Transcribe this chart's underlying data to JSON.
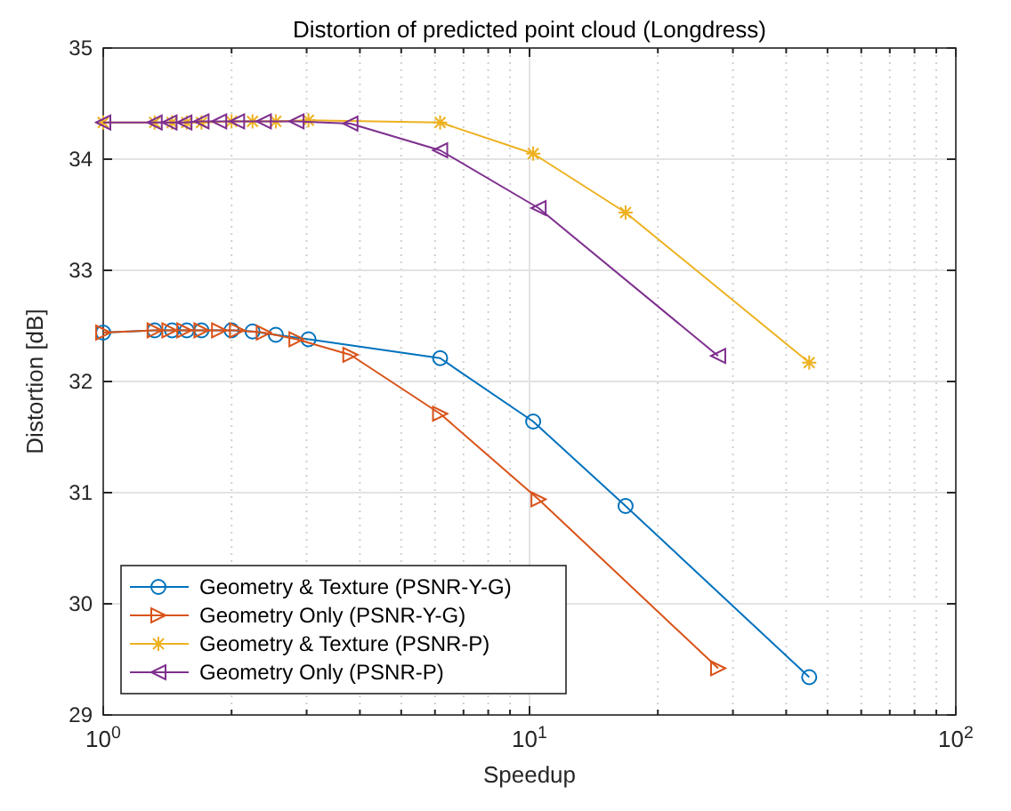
{
  "chart_data": {
    "type": "line",
    "title": "Distortion of predicted point cloud (Longdress)",
    "xlabel": "Speedup",
    "ylabel": "Distortion [dB]",
    "log": "x",
    "grid": true,
    "legend": "bottom left",
    "xlim": [
      1,
      100
    ],
    "xticks": [
      {
        "value": 1,
        "label": "10$^{0}$"
      },
      {
        "value": 2,
        "label": null
      },
      {
        "value": 3,
        "label": null
      },
      {
        "value": 4,
        "label": null
      },
      {
        "value": 5,
        "label": null
      },
      {
        "value": 6,
        "label": null
      },
      {
        "value": 7,
        "label": null
      },
      {
        "value": 8,
        "label": null
      },
      {
        "value": 9,
        "label": null
      },
      {
        "value": 10,
        "label": "10$^{1}$"
      },
      {
        "value": 20,
        "label": null
      },
      {
        "value": 30,
        "label": null
      },
      {
        "value": 40,
        "label": null
      },
      {
        "value": 50,
        "label": null
      },
      {
        "value": 60,
        "label": null
      },
      {
        "value": 70,
        "label": null
      },
      {
        "value": 80,
        "label": null
      },
      {
        "value": 90,
        "label": null
      },
      {
        "value": 100,
        "label": "10$^{2}$"
      }
    ],
    "ylim": [
      29,
      35
    ],
    "yticks": [
      29,
      30,
      31,
      32,
      33,
      34,
      35
    ],
    "series": [
      {
        "name": "Geometry & Texture (PSNR-Y-G)",
        "color": "#0072bd",
        "marker": "circle",
        "x": [
          1.0,
          1.32,
          1.45,
          1.57,
          1.7,
          2.0,
          2.24,
          2.54,
          3.03,
          6.17,
          10.2,
          16.8,
          45.3
        ],
        "values": [
          32.44,
          32.46,
          32.46,
          32.46,
          32.46,
          32.46,
          32.45,
          32.42,
          32.38,
          32.21,
          31.64,
          30.88,
          29.34
        ]
      },
      {
        "name": "Geometry Only (PSNR-Y-G)",
        "color": "#d95319",
        "marker": "triangle-right",
        "x": [
          1.0,
          1.32,
          1.43,
          1.55,
          1.7,
          1.87,
          2.06,
          2.38,
          2.84,
          3.8,
          6.17,
          10.5,
          27.7
        ],
        "values": [
          32.44,
          32.46,
          32.46,
          32.46,
          32.46,
          32.46,
          32.46,
          32.44,
          32.38,
          32.24,
          31.71,
          30.94,
          29.42
        ]
      },
      {
        "name": "Geometry & Texture (PSNR-P)",
        "color": "#edb120",
        "marker": "cross",
        "x": [
          1.0,
          1.32,
          1.45,
          1.57,
          1.7,
          2.0,
          2.24,
          2.54,
          3.03,
          6.17,
          10.2,
          16.8,
          45.3
        ],
        "values": [
          34.33,
          34.33,
          34.33,
          34.33,
          34.33,
          34.34,
          34.34,
          34.34,
          34.35,
          34.33,
          34.05,
          33.52,
          32.17
        ]
      },
      {
        "name": "Geometry Only (PSNR-P)",
        "color": "#7e2f8e",
        "marker": "triangle-left",
        "x": [
          1.0,
          1.32,
          1.43,
          1.55,
          1.7,
          1.87,
          2.06,
          2.38,
          2.84,
          3.8,
          6.17,
          10.5,
          27.7
        ],
        "values": [
          34.33,
          34.33,
          34.33,
          34.33,
          34.34,
          34.34,
          34.34,
          34.34,
          34.34,
          34.32,
          34.08,
          33.56,
          32.23
        ]
      }
    ]
  }
}
